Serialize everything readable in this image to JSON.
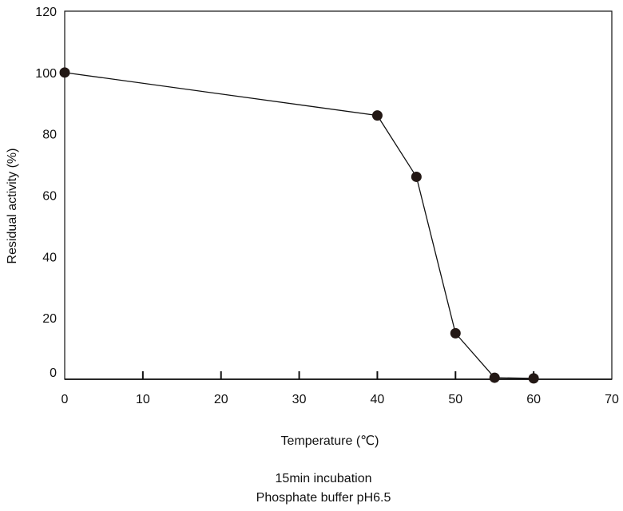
{
  "chart_data": {
    "type": "line",
    "xlabel": "Temperature (℃)",
    "ylabel": "Residual activity (%)",
    "caption_lines": [
      "15min incubation",
      "Phosphate buffer pH6.5"
    ],
    "xlim": [
      0,
      70
    ],
    "ylim": [
      0,
      120
    ],
    "x_ticks": [
      "0",
      "10",
      "20",
      "30",
      "40",
      "50",
      "60",
      "70"
    ],
    "y_ticks": [
      "0",
      "20",
      "40",
      "60",
      "80",
      "100",
      "120"
    ],
    "grid": false,
    "legend": "none",
    "series": [
      {
        "x": [
          0,
          40,
          45,
          50,
          55,
          60
        ],
        "y": [
          100,
          86,
          66,
          15,
          0.5,
          0.3
        ]
      }
    ],
    "colors": {
      "line": "#111111",
      "marker": "#231815",
      "axis": "#111111"
    }
  }
}
